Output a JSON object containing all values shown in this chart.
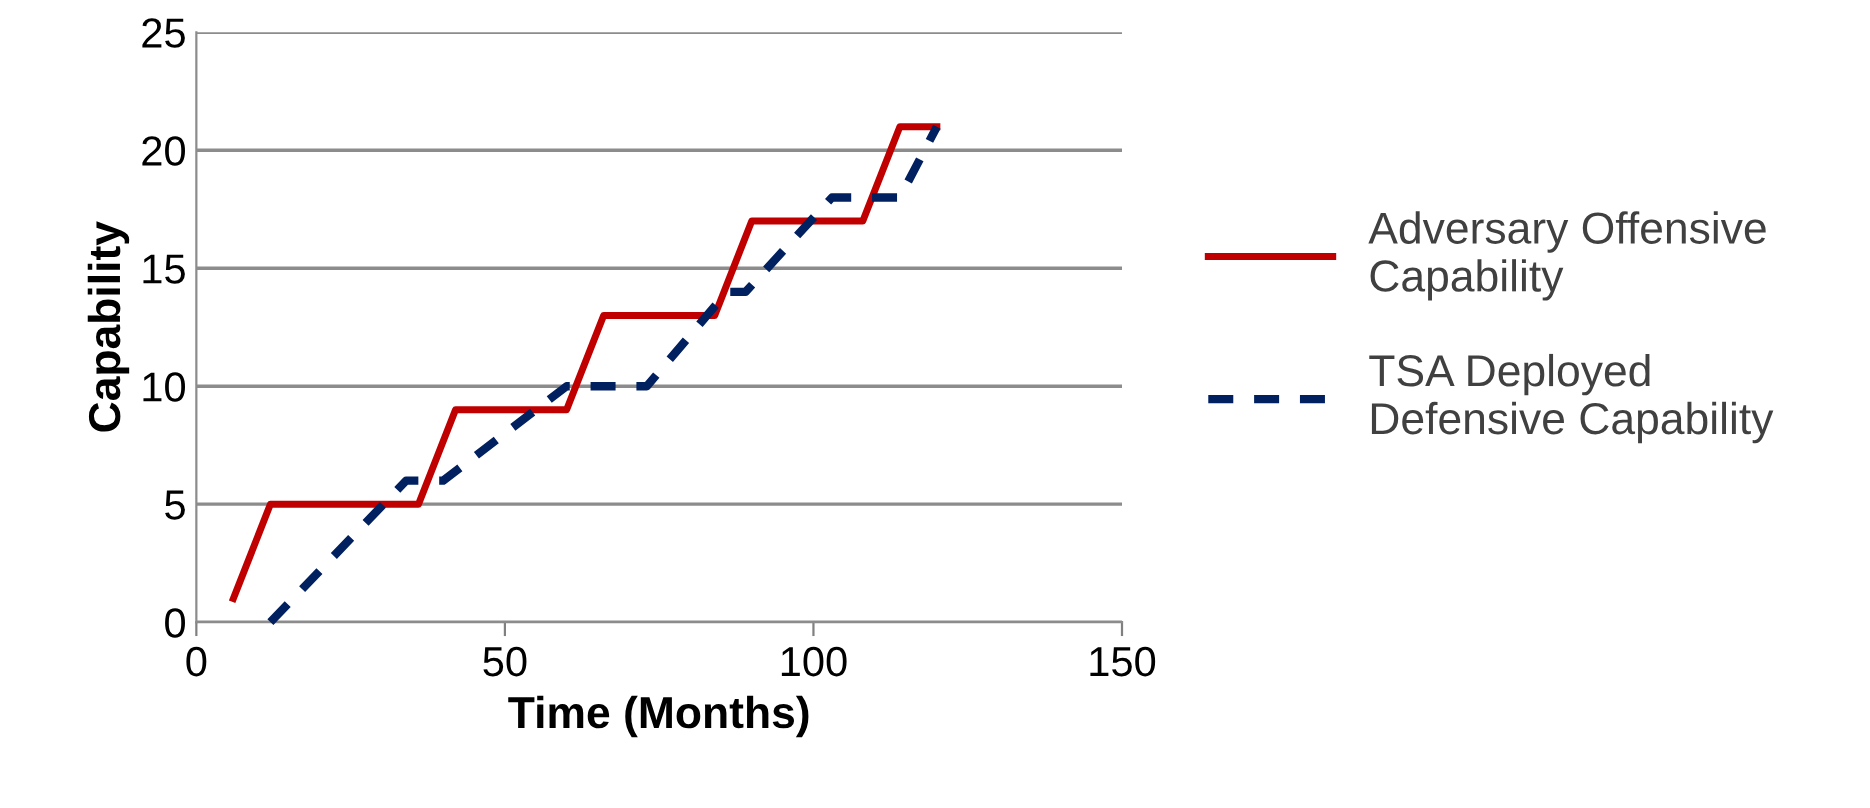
{
  "chart_data": {
    "type": "line",
    "xlabel": "Time (Months)",
    "ylabel": "Capability",
    "xlim": [
      0,
      150
    ],
    "xticks": [
      0,
      50,
      100,
      150
    ],
    "ylim": [
      0,
      25
    ],
    "yticks": [
      0,
      5,
      10,
      15,
      20,
      25
    ],
    "grid": "y",
    "legend": "right",
    "marker": "none",
    "series": [
      {
        "name": "Adversary Offensive Capability",
        "color": "#c00000",
        "line_style": "solid",
        "x": [
          6,
          12,
          36,
          42,
          60,
          66,
          84,
          90,
          108,
          114,
          120
        ],
        "values": [
          1,
          5,
          5,
          9,
          9,
          13,
          13,
          17,
          17,
          21,
          21
        ]
      },
      {
        "name": "TSA Deployed Defensive Capability",
        "color": "#002060",
        "line_style": "dashed",
        "x": [
          12,
          34,
          40,
          60,
          73,
          86,
          89,
          103,
          114,
          120
        ],
        "values": [
          0,
          6,
          6,
          10,
          10,
          14,
          14,
          18,
          18,
          21
        ]
      }
    ]
  }
}
